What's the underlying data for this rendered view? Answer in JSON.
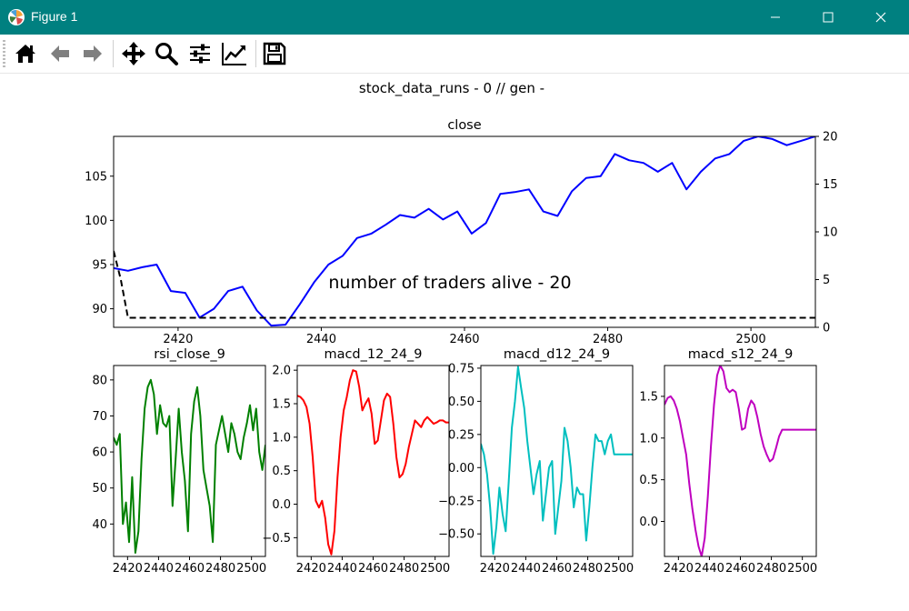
{
  "window": {
    "title": "Figure 1"
  },
  "toolbar": {
    "buttons": [
      {
        "icon": "home-icon"
      },
      {
        "icon": "back-arrow-icon"
      },
      {
        "icon": "forward-arrow-icon"
      },
      {
        "icon": "pan-icon"
      },
      {
        "icon": "zoom-icon"
      },
      {
        "icon": "configure-subplots-icon"
      },
      {
        "icon": "edit-axis-icon"
      },
      {
        "icon": "save-icon"
      }
    ]
  },
  "figure": {
    "suptitle": "stock_data_runs - 0 // gen -"
  },
  "chart_data": [
    {
      "type": "line",
      "title": "close",
      "annotation": "number of traders alive - 20",
      "xlim": [
        2411,
        2509
      ],
      "ylim": [
        87.9,
        109.5
      ],
      "y2lim": [
        0,
        20
      ],
      "xticks": [
        2420,
        2440,
        2460,
        2480,
        2500
      ],
      "yticks": [
        90,
        95,
        100,
        105
      ],
      "y2ticks": [
        0,
        5,
        10,
        15,
        20
      ],
      "series": [
        {
          "color": "#0000ff",
          "dash": "solid",
          "axis": "left",
          "x": [
            2411,
            2413,
            2415,
            2417,
            2419,
            2421,
            2423,
            2425,
            2427,
            2429,
            2431,
            2433,
            2435,
            2437,
            2439,
            2441,
            2443,
            2445,
            2447,
            2449,
            2451,
            2453,
            2455,
            2457,
            2459,
            2461,
            2463,
            2465,
            2467,
            2469,
            2471,
            2473,
            2475,
            2477,
            2479,
            2481,
            2483,
            2485,
            2487,
            2489,
            2491,
            2493,
            2495,
            2497,
            2499,
            2501,
            2503,
            2505,
            2507,
            2509
          ],
          "y": [
            94.6,
            94.3,
            94.7,
            95.0,
            92.0,
            91.8,
            89.0,
            90.0,
            92.0,
            92.5,
            89.8,
            88.1,
            88.2,
            90.5,
            93.0,
            95.0,
            96.0,
            98.0,
            98.5,
            99.5,
            100.6,
            100.3,
            101.3,
            100.1,
            101.0,
            98.5,
            99.7,
            103.0,
            103.2,
            103.5,
            101.0,
            100.5,
            103.3,
            104.8,
            105.0,
            107.5,
            106.8,
            106.5,
            105.5,
            106.5,
            103.5,
            105.5,
            107.0,
            107.5,
            109.0,
            109.5,
            109.2,
            108.5,
            109.0,
            109.5
          ]
        },
        {
          "color": "#000000",
          "dash": "dashed",
          "axis": "right",
          "x": [
            2411,
            2412,
            2413,
            2509
          ],
          "y": [
            8,
            5,
            1,
            1
          ]
        }
      ]
    },
    {
      "type": "line",
      "title": "rsi_close_9",
      "xlim": [
        2411,
        2509
      ],
      "ylim": [
        31,
        84
      ],
      "xticks": [
        2420,
        2440,
        2460,
        2480,
        2500
      ],
      "yticks": [
        40,
        50,
        60,
        70,
        80
      ],
      "series": [
        {
          "color": "#008000",
          "x": [
            2411,
            2413,
            2415,
            2417,
            2419,
            2421,
            2423,
            2425,
            2427,
            2429,
            2431,
            2433,
            2435,
            2437,
            2439,
            2441,
            2443,
            2445,
            2447,
            2449,
            2451,
            2453,
            2455,
            2457,
            2459,
            2461,
            2463,
            2465,
            2467,
            2469,
            2471,
            2473,
            2475,
            2477,
            2479,
            2481,
            2483,
            2485,
            2487,
            2489,
            2491,
            2493,
            2495,
            2497,
            2499,
            2501,
            2503,
            2505,
            2507,
            2509
          ],
          "y": [
            64,
            62,
            65,
            40,
            46,
            35,
            53,
            32,
            38,
            58,
            72,
            78,
            80,
            76,
            65,
            73,
            68,
            67,
            70,
            45,
            58,
            72,
            60,
            52,
            38,
            65,
            74,
            78,
            70,
            55,
            50,
            45,
            35,
            62,
            66,
            70,
            65,
            60,
            68,
            65,
            60,
            58,
            64,
            68,
            73,
            66,
            72,
            60,
            55,
            62
          ]
        }
      ]
    },
    {
      "type": "line",
      "title": "macd_12_24_9",
      "xlim": [
        2411,
        2509
      ],
      "ylim": [
        -0.78,
        2.07
      ],
      "xticks": [
        2420,
        2440,
        2460,
        2480,
        2500
      ],
      "yticks": [
        -0.5,
        0.0,
        0.5,
        1.0,
        1.5,
        2.0
      ],
      "series": [
        {
          "color": "#ff0000",
          "x": [
            2411,
            2413,
            2415,
            2417,
            2419,
            2421,
            2423,
            2425,
            2427,
            2429,
            2431,
            2433,
            2435,
            2437,
            2439,
            2441,
            2443,
            2445,
            2447,
            2449,
            2451,
            2453,
            2455,
            2457,
            2459,
            2461,
            2463,
            2465,
            2467,
            2469,
            2471,
            2473,
            2475,
            2477,
            2479,
            2481,
            2483,
            2485,
            2487,
            2489,
            2491,
            2493,
            2495,
            2497,
            2499,
            2501,
            2503,
            2505,
            2507,
            2509
          ],
          "y": [
            1.62,
            1.6,
            1.55,
            1.45,
            1.2,
            0.7,
            0.05,
            -0.05,
            0.05,
            -0.2,
            -0.6,
            -0.75,
            -0.4,
            0.4,
            1.0,
            1.4,
            1.6,
            1.85,
            2.0,
            1.98,
            1.75,
            1.4,
            1.5,
            1.58,
            1.35,
            0.9,
            0.95,
            1.25,
            1.55,
            1.65,
            1.6,
            1.2,
            0.7,
            0.4,
            0.45,
            0.6,
            0.85,
            1.05,
            1.25,
            1.2,
            1.15,
            1.25,
            1.3,
            1.25,
            1.2,
            1.22,
            1.25,
            1.25,
            1.22,
            1.22
          ]
        }
      ]
    },
    {
      "type": "line",
      "title": "macd_d12_24_9",
      "xlim": [
        2411,
        2509
      ],
      "ylim": [
        -0.67,
        0.77
      ],
      "xticks": [
        2420,
        2440,
        2460,
        2480,
        2500
      ],
      "yticks": [
        -0.5,
        -0.25,
        0.0,
        0.25,
        0.5,
        0.75
      ],
      "series": [
        {
          "color": "#00bfbf",
          "x": [
            2411,
            2413,
            2415,
            2417,
            2419,
            2421,
            2423,
            2425,
            2427,
            2429,
            2431,
            2433,
            2435,
            2437,
            2439,
            2441,
            2443,
            2445,
            2447,
            2449,
            2451,
            2453,
            2455,
            2457,
            2459,
            2461,
            2463,
            2465,
            2467,
            2469,
            2471,
            2473,
            2475,
            2477,
            2479,
            2481,
            2483,
            2485,
            2487,
            2489,
            2491,
            2493,
            2495,
            2497,
            2499,
            2501,
            2503,
            2505,
            2507,
            2509
          ],
          "y": [
            0.18,
            0.1,
            -0.05,
            -0.3,
            -0.65,
            -0.45,
            -0.15,
            -0.35,
            -0.48,
            -0.1,
            0.3,
            0.5,
            0.76,
            0.6,
            0.45,
            0.2,
            0.0,
            -0.2,
            -0.05,
            0.05,
            -0.4,
            -0.2,
            0.0,
            0.05,
            -0.5,
            -0.3,
            -0.1,
            0.3,
            0.2,
            0.0,
            -0.3,
            -0.15,
            -0.2,
            -0.2,
            -0.55,
            -0.3,
            0.0,
            0.25,
            0.2,
            0.2,
            0.1,
            0.2,
            0.25,
            0.1,
            0.1,
            0.1,
            0.1,
            0.1,
            0.1,
            0.1
          ]
        }
      ]
    },
    {
      "type": "line",
      "title": "macd_s12_24_9",
      "xlim": [
        2411,
        2509
      ],
      "ylim": [
        -0.42,
        1.87
      ],
      "xticks": [
        2420,
        2440,
        2460,
        2480,
        2500
      ],
      "yticks": [
        0.0,
        0.5,
        1.0,
        1.5
      ],
      "series": [
        {
          "color": "#bf00bf",
          "x": [
            2411,
            2413,
            2415,
            2417,
            2419,
            2421,
            2423,
            2425,
            2427,
            2429,
            2431,
            2433,
            2435,
            2437,
            2439,
            2441,
            2443,
            2445,
            2447,
            2449,
            2451,
            2453,
            2455,
            2457,
            2459,
            2461,
            2463,
            2465,
            2467,
            2469,
            2471,
            2473,
            2475,
            2477,
            2479,
            2481,
            2483,
            2485,
            2487,
            2489,
            2491,
            2493,
            2495,
            2497,
            2499,
            2501,
            2503,
            2505,
            2507,
            2509
          ],
          "y": [
            1.4,
            1.48,
            1.5,
            1.45,
            1.35,
            1.2,
            1.0,
            0.8,
            0.45,
            0.15,
            -0.1,
            -0.3,
            -0.42,
            -0.2,
            0.3,
            0.9,
            1.4,
            1.75,
            1.87,
            1.8,
            1.6,
            1.55,
            1.58,
            1.55,
            1.35,
            1.1,
            1.12,
            1.35,
            1.45,
            1.4,
            1.25,
            1.05,
            0.9,
            0.8,
            0.72,
            0.75,
            0.88,
            1.02,
            1.1,
            1.1,
            1.1,
            1.1,
            1.1,
            1.1,
            1.1,
            1.1,
            1.1,
            1.1,
            1.1,
            1.1
          ]
        }
      ]
    }
  ]
}
